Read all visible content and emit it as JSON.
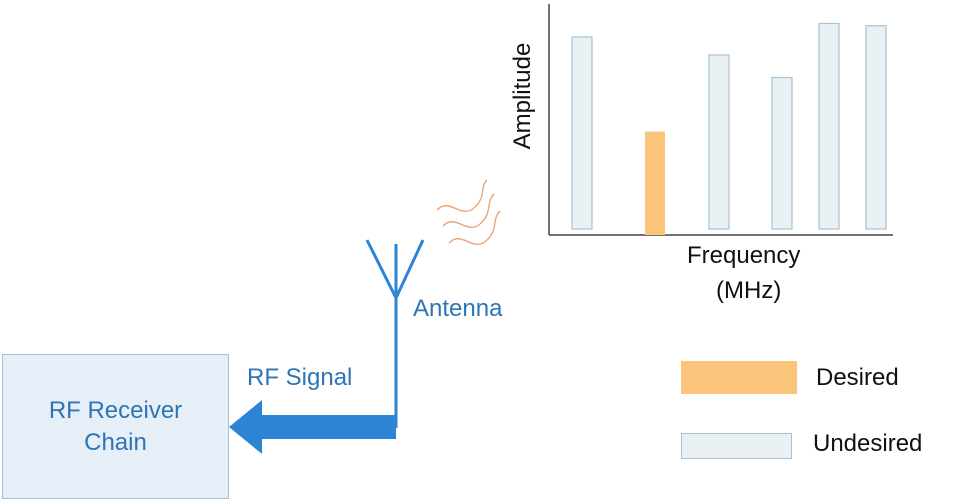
{
  "colors": {
    "desired": "#fac47a",
    "undesired_fill": "#eaf1f4",
    "undesired_border": "#a9c2d2",
    "signal_blue": "#2e84d4",
    "text_blue": "#2e75b6",
    "wave": "#e8a070"
  },
  "receiver": {
    "line1": "RF Receiver",
    "line2": "Chain"
  },
  "signal_label": "RF Signal",
  "antenna_label": "Antenna",
  "chart_data": {
    "type": "bar",
    "xlabel_line1": "Frequency",
    "xlabel_line2": "(MHz)",
    "ylabel": "Amplitude",
    "ylim": [
      0,
      100
    ],
    "bars": [
      {
        "value": 88,
        "kind": "undesired"
      },
      {
        "value": 46,
        "kind": "desired"
      },
      {
        "value": 80,
        "kind": "undesired"
      },
      {
        "value": 70,
        "kind": "undesired"
      },
      {
        "value": 94,
        "kind": "undesired"
      },
      {
        "value": 93,
        "kind": "undesired"
      }
    ]
  },
  "legend": [
    {
      "label": "Desired",
      "kind": "desired"
    },
    {
      "label": "Undesired",
      "kind": "undesired"
    }
  ]
}
